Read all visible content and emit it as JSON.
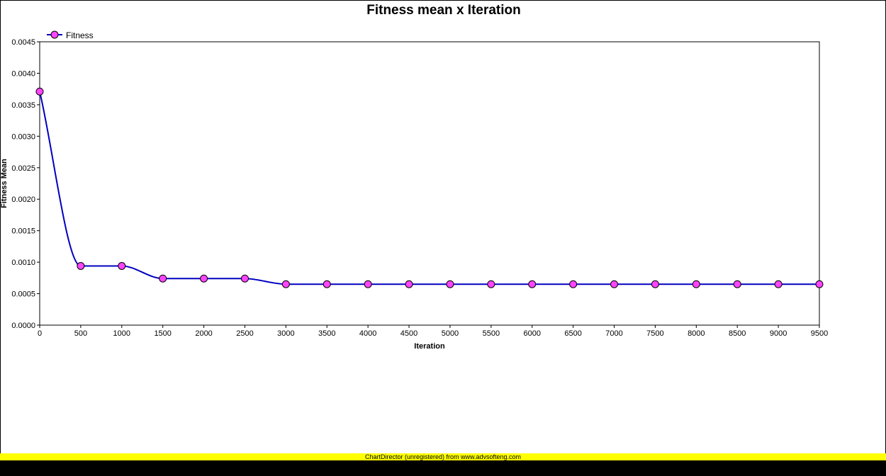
{
  "colors": {
    "line": "#0000c0",
    "marker_fill": "#ff44ff",
    "marker_stroke": "#000000",
    "axis": "#000000",
    "watermark_bg": "#ffff00",
    "bottom_bar": "#000000"
  },
  "watermark": "ChartDirector (unregistered) from www.advsofteng.com",
  "chart_data": {
    "type": "line",
    "title": "Fitness mean x Iteration",
    "xlabel": "Iteration",
    "ylabel": "Fitness Mean",
    "legend_position": "top-left",
    "grid": false,
    "smooth": true,
    "xlim": [
      0,
      9500
    ],
    "ylim": [
      0,
      0.0045
    ],
    "xticks": [
      "0",
      "500",
      "1000",
      "1500",
      "2000",
      "2500",
      "3000",
      "3500",
      "4000",
      "4500",
      "5000",
      "5500",
      "6000",
      "6500",
      "7000",
      "7500",
      "8000",
      "8500",
      "9000",
      "9500"
    ],
    "yticks": [
      "0.0000",
      "0.0005",
      "0.0010",
      "0.0015",
      "0.0020",
      "0.0025",
      "0.0030",
      "0.0035",
      "0.0040",
      "0.0045"
    ],
    "x": [
      0,
      500,
      1000,
      1500,
      2000,
      2500,
      3000,
      3500,
      4000,
      4500,
      5000,
      5500,
      6000,
      6500,
      7000,
      7500,
      8000,
      8500,
      9000,
      9500
    ],
    "series": [
      {
        "name": "Fitness",
        "values": [
          0.00371,
          0.00094,
          0.00094,
          0.00074,
          0.00074,
          0.00074,
          0.00065,
          0.00065,
          0.00065,
          0.00065,
          0.00065,
          0.00065,
          0.00065,
          0.00065,
          0.00065,
          0.00065,
          0.00065,
          0.00065,
          0.00065,
          0.00065
        ]
      }
    ]
  }
}
